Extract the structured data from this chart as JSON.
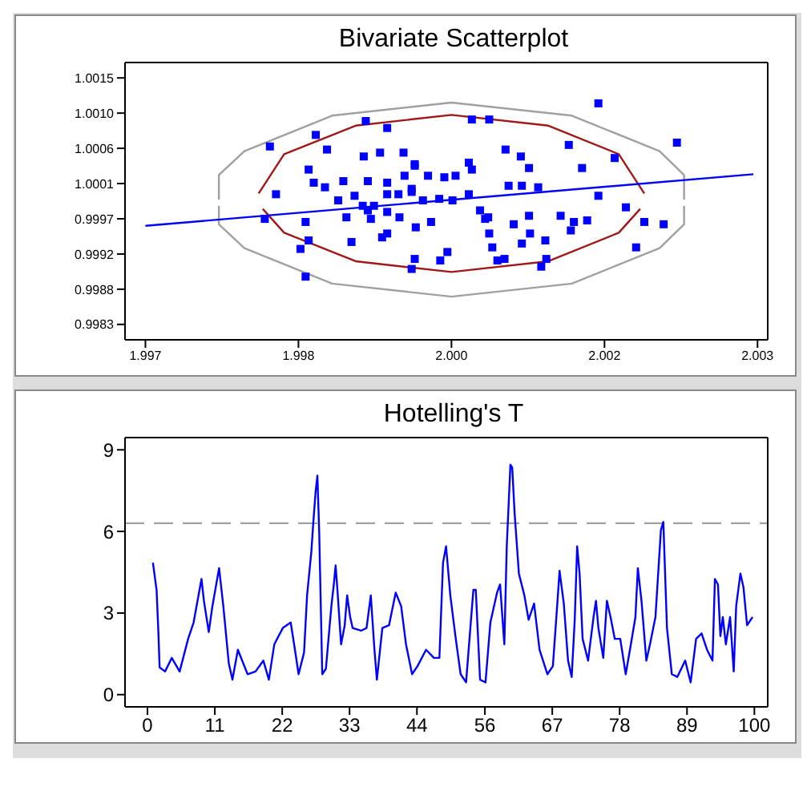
{
  "chart_data": [
    {
      "type": "scatter",
      "title": "Bivariate Scatterplot",
      "xlim": [
        1.9968,
        2.0031
      ],
      "ylim": [
        0.9981,
        1.0017
      ],
      "xticks": [
        {
          "value": 1.997,
          "label": "1.997"
        },
        {
          "value": 1.9985,
          "label": "1.998"
        },
        {
          "value": 2.0,
          "label": "2.000"
        },
        {
          "value": 2.0015,
          "label": "2.002"
        },
        {
          "value": 2.003,
          "label": "2.003"
        }
      ],
      "yticks": [
        {
          "value": 0.9983,
          "label": "0.9983"
        },
        {
          "value": 0.998757,
          "label": "0.9988"
        },
        {
          "value": 0.999214,
          "label": "0.9992"
        },
        {
          "value": 0.999671,
          "label": "0.9997"
        },
        {
          "value": 1.000129,
          "label": "1.0001"
        },
        {
          "value": 1.000586,
          "label": "1.0006"
        },
        {
          "value": 1.001043,
          "label": "1.0010"
        },
        {
          "value": 1.0015,
          "label": "1.0015"
        }
      ],
      "series": [
        {
          "type": "line",
          "color": "#a0a0a0",
          "x": [
            1.99772,
            1.99772,
            1.99797,
            1.99883,
            2.0,
            2.00118,
            2.00204,
            2.00228,
            2.00228
          ],
          "values": [
            0.99992,
            1.00024,
            1.00055,
            1.00101,
            1.00118,
            1.00101,
            1.00055,
            1.00024,
            0.99992
          ]
        },
        {
          "type": "line",
          "color": "#a0a0a0",
          "x": [
            1.99772,
            1.99772,
            1.99797,
            1.99883,
            2.0,
            2.00118,
            2.00204,
            2.00228,
            2.00228
          ],
          "values": [
            0.99984,
            0.9996,
            0.99929,
            0.99883,
            0.99866,
            0.99883,
            0.99929,
            0.9996,
            0.99984
          ]
        },
        {
          "type": "line",
          "color": "#a01818",
          "x": [
            1.99811,
            1.99836,
            1.99906,
            2.0,
            2.00095,
            2.00164,
            2.00189
          ],
          "values": [
            1.0,
            1.00051,
            1.00088,
            1.00102,
            1.00088,
            1.00051,
            1.0
          ]
        },
        {
          "type": "line",
          "color": "#a01818",
          "x": [
            1.99815,
            1.99836,
            1.99906,
            2.0,
            2.00095,
            2.00164,
            2.00185
          ],
          "values": [
            0.9998,
            0.99949,
            0.99912,
            0.99898,
            0.99912,
            0.99949,
            0.9998
          ]
        },
        {
          "type": "line",
          "color": "#0000ff",
          "x": [
            1.997,
            2.00296
          ],
          "values": [
            0.99958,
            1.00025
          ]
        },
        {
          "color": "#0000ff",
          "marker": "square",
          "x": [
            1.99822,
            1.99867,
            1.99916,
            1.99937,
            1.99878,
            1.99914,
            1.9993,
            1.99953,
            1.99964,
            1.9986,
            1.99865,
            1.99876,
            1.99894,
            1.99918,
            1.99937,
            1.99954,
            1.99828,
            1.99905,
            1.99889,
            1.99913,
            1.99924,
            1.99937,
            1.99948,
            1.99961,
            1.99897,
            1.99918,
            1.99921,
            1.99937,
            1.99949,
            1.99817,
            1.99857,
            1.9986,
            1.99852,
            1.99902,
            1.99932,
            1.99937,
            1.99964,
            1.99961,
            1.99857,
            2.00144,
            2.00221,
            2.0002,
            2.00037,
            2.00053,
            2.00068,
            2.00115,
            2.0016,
            2.00128,
            2.00076,
            2.00017,
            2.0002,
            1.99964,
            1.99977,
            1.99993,
            2.00004,
            1.99961,
            2.00056,
            2.00069,
            2.00085,
            2.00144,
            2.00017,
            2.00001,
            1.99988,
            1.99972,
            2.00171,
            2.00189,
            2.00208,
            2.00028,
            2.00033,
            2.00036,
            2.00076,
            2.00061,
            2.00107,
            2.0012,
            2.00133,
            2.00117,
            2.00037,
            2.00077,
            2.00092,
            2.00069,
            2.0004,
            2.00181,
            1.99965,
            1.9998,
            1.99996,
            1.99989,
            2.00045,
            2.00052,
            2.00093,
            2.00088
          ],
          "values": [
            1.00061,
            1.00076,
            1.00094,
            1.00085,
            1.00057,
            1.00048,
            1.00053,
            1.00053,
            1.00038,
            1.00031,
            1.00014,
            1.00008,
            1.00016,
            1.00016,
            1.00014,
            1.00023,
            0.99999,
            0.99997,
            0.99991,
            0.99984,
            0.99984,
            0.99999,
            0.99999,
            1.00002,
            0.99969,
            0.99978,
            0.99967,
            0.99976,
            0.99969,
            0.99967,
            0.99963,
            0.99939,
            0.99928,
            0.99937,
            0.99943,
            0.99948,
            0.99915,
            0.99902,
            0.99892,
            1.00117,
            1.00066,
            1.00096,
            1.00096,
            1.00057,
            1.00048,
            1.00063,
            1.00046,
            1.00033,
            1.00033,
            1.0004,
            1.00031,
            1.00036,
            1.00023,
            1.00021,
            1.00023,
            1.00006,
            1.0001,
            1.0001,
            1.00008,
            0.99997,
            0.99999,
            0.99991,
            0.99993,
            0.99991,
            0.99982,
            0.99963,
            0.9996,
            0.99978,
            0.99967,
            0.99969,
            0.99971,
            0.9996,
            0.99971,
            0.99963,
            0.99965,
            0.99952,
            0.99948,
            0.99948,
            0.99939,
            0.99935,
            0.9993,
            0.9993,
            0.99956,
            0.99963,
            0.99924,
            0.99913,
            0.99913,
            0.99915,
            0.99915,
            0.99905
          ]
        }
      ]
    },
    {
      "type": "line",
      "title": "Hotelling's T",
      "marker": "none",
      "line_style": "solid",
      "xlim": [
        -3.7,
        102.2
      ],
      "ylim": [
        -0.45,
        9.45
      ],
      "xticks": [
        0,
        {
          "value": 11.1,
          "label": "11"
        },
        {
          "value": 22.2,
          "label": "22"
        },
        {
          "value": 33.3,
          "label": "33"
        },
        {
          "value": 44.4,
          "label": "44"
        },
        {
          "value": 55.6,
          "label": "56"
        },
        {
          "value": 66.7,
          "label": "67"
        },
        {
          "value": 77.8,
          "label": "78"
        },
        {
          "value": 88.9,
          "label": "89"
        },
        100
      ],
      "yticks": [
        0,
        3,
        6,
        9
      ],
      "ref_lines": [
        {
          "axis": "y",
          "value": 6.3,
          "color": "#a0a0a0",
          "line_style": "dashed"
        }
      ],
      "x": [
        0.9,
        1.5,
        1.8,
        2.0,
        2.9,
        4.0,
        5.3,
        6.7,
        7.6,
        8.9,
        9.3,
        10.1,
        10.7,
        11.8,
        12.5,
        13.4,
        14.0,
        14.9,
        15.6,
        16.5,
        17.8,
        19.1,
        20.0,
        20.9,
        22.3,
        23.6,
        24.3,
        24.9,
        25.8,
        26.3,
        27.0,
        27.3,
        27.7,
        28.0,
        28.3,
        28.8,
        29.4,
        30.3,
        30.7,
        31.0,
        31.3,
        31.9,
        32.5,
        32.9,
        33.4,
        33.8,
        35.2,
        36.1,
        36.8,
        37.4,
        37.8,
        38.7,
        39.8,
        40.9,
        41.8,
        42.6,
        43.6,
        44.5,
        45.9,
        47.2,
        48.1,
        48.7,
        49.2,
        49.9,
        50.8,
        51.6,
        52.5,
        53.2,
        53.7,
        54.1,
        54.8,
        55.7,
        56.5,
        57.6,
        58.1,
        58.8,
        59.2,
        59.8,
        60.1,
        60.5,
        61.2,
        62.1,
        62.8,
        63.7,
        64.6,
        65.9,
        66.8,
        67.5,
        67.9,
        68.6,
        69.3,
        69.9,
        70.4,
        70.8,
        71.2,
        71.7,
        72.6,
        73.5,
        73.9,
        74.3,
        75.1,
        75.7,
        76.3,
        77.0,
        77.9,
        78.8,
        79.5,
        80.4,
        80.8,
        81.4,
        82.2,
        82.8,
        83.7,
        84.6,
        85.0,
        85.6,
        86.4,
        87.3,
        88.6,
        89.5,
        90.4,
        91.3,
        92.2,
        93.1,
        93.5,
        94.0,
        94.4,
        94.8,
        95.3,
        96.0,
        96.6,
        97.0,
        97.7,
        98.2,
        98.8,
        99.7
      ],
      "series": [
        {
          "color": "#0000ff",
          "values": [
            4.85,
            3.85,
            2.3,
            1.0,
            0.85,
            1.35,
            0.85,
            2.05,
            2.65,
            4.25,
            3.45,
            2.3,
            3.25,
            4.65,
            3.25,
            1.15,
            0.55,
            1.65,
            1.25,
            0.75,
            0.85,
            1.25,
            0.55,
            1.85,
            2.45,
            2.65,
            1.65,
            0.75,
            1.55,
            3.65,
            5.25,
            6.25,
            7.45,
            8.05,
            5.95,
            0.75,
            0.95,
            3.25,
            4.05,
            4.75,
            3.85,
            1.85,
            2.55,
            3.65,
            2.85,
            2.45,
            2.35,
            2.45,
            3.65,
            1.65,
            0.55,
            2.45,
            2.55,
            3.75,
            3.25,
            1.85,
            0.75,
            1.05,
            1.65,
            1.35,
            1.35,
            4.85,
            5.45,
            3.65,
            2.05,
            0.75,
            0.45,
            2.45,
            3.85,
            3.85,
            0.55,
            0.45,
            2.65,
            3.75,
            4.05,
            1.85,
            5.45,
            8.45,
            8.35,
            6.65,
            4.45,
            3.65,
            2.75,
            3.35,
            1.65,
            0.75,
            1.05,
            3.25,
            4.55,
            3.35,
            1.25,
            0.65,
            2.75,
            5.45,
            4.45,
            2.05,
            1.25,
            2.85,
            3.45,
            2.45,
            1.35,
            3.45,
            2.85,
            2.05,
            2.05,
            0.75,
            1.65,
            2.85,
            4.65,
            3.45,
            1.25,
            1.85,
            2.85,
            6.05,
            6.35,
            2.45,
            0.75,
            0.65,
            1.25,
            0.45,
            2.05,
            2.25,
            1.65,
            1.25,
            4.25,
            4.05,
            2.15,
            2.85,
            1.85,
            2.85,
            0.85,
            3.25,
            4.45,
            3.95,
            2.55,
            2.85
          ]
        }
      ]
    }
  ]
}
